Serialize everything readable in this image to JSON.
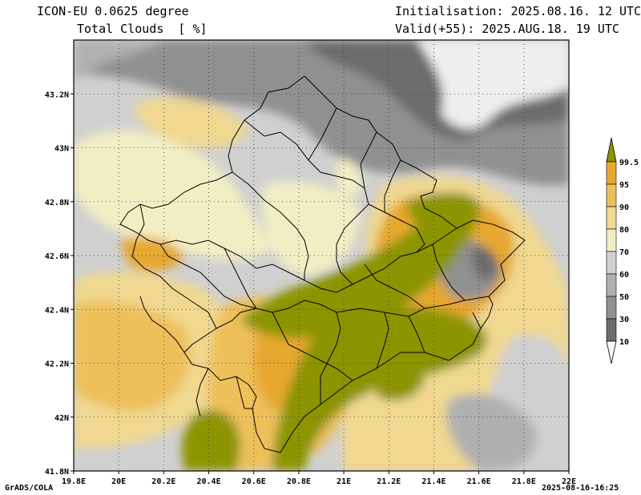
{
  "header": {
    "model": "ICON-EU 0.0625 degree",
    "variable": "Total Clouds  [ %]",
    "init": "Initialisation: 2025.08.16. 12 UTC",
    "valid": "Valid(+55): 2025.AUG.18. 19 UTC"
  },
  "footer": {
    "credit": "GrADS/COLA",
    "timestamp": "2025-08-16-16:25"
  },
  "axes": {
    "x_ticks": [
      "19.8E",
      "20E",
      "20.2E",
      "20.4E",
      "20.6E",
      "20.8E",
      "21E",
      "21.2E",
      "21.4E",
      "21.6E",
      "21.8E",
      "22E"
    ],
    "y_ticks": [
      "41.8N",
      "42N",
      "42.2N",
      "42.4N",
      "42.6N",
      "42.8N",
      "43N",
      "43.2N"
    ],
    "lon_range": [
      19.8,
      22.0
    ],
    "lat_range": [
      41.8,
      43.4
    ]
  },
  "legend": {
    "labels": [
      "99.5",
      "95",
      "90",
      "80",
      "70",
      "60",
      "50",
      "30",
      "10"
    ],
    "colors": [
      "#8c9400",
      "#e6a82e",
      "#eec05a",
      "#f0d890",
      "#f2eec4",
      "#d0d0d0",
      "#b0b0b0",
      "#909090",
      "#6c6c6c",
      "#f8f8f8"
    ]
  },
  "palette": {
    "very_cloudy": "#8c9400",
    "overcast": "#e6a82e",
    "mostly_cloudy": "#eec05a",
    "cloudy": "#f0d890",
    "partly": "#f2eec4",
    "light": "#d0d0d0",
    "grey": "#b0b0b0",
    "dark": "#909090",
    "darkest": "#6c6c6c",
    "clear": "#eeeeee"
  }
}
